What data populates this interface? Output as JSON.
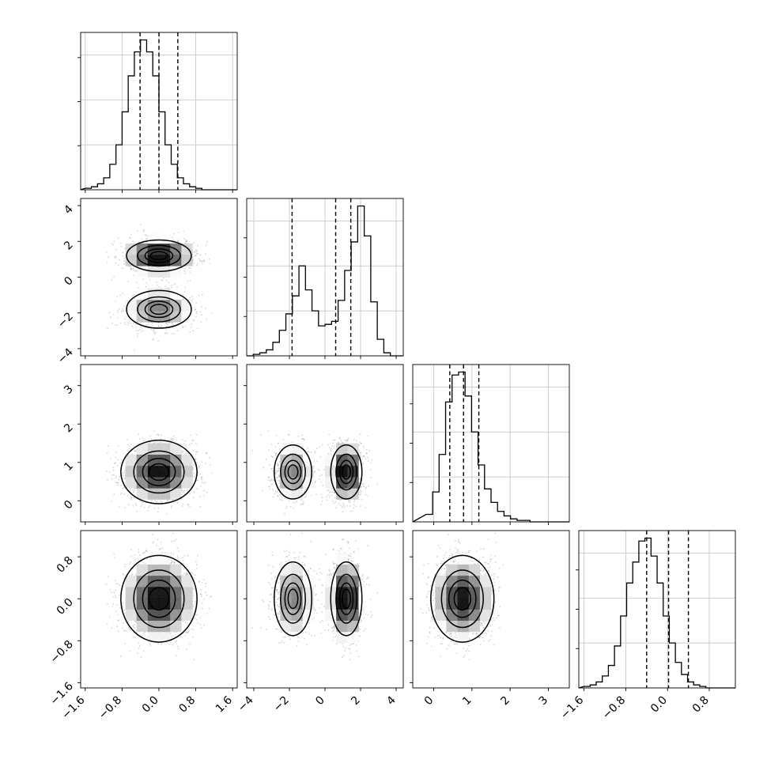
{
  "chart_data": {
    "type": "corner",
    "title": "",
    "grid": true,
    "params": [
      {
        "range": [
          -1.7,
          1.7
        ],
        "ticks": [
          -1.6,
          -0.8,
          0.0,
          0.8,
          1.6
        ],
        "tick_labels": [
          "−1.6",
          "−0.8",
          "0.0",
          "0.8",
          "1.6"
        ],
        "quantiles": [
          -0.41,
          0.0,
          0.41
        ],
        "hist_edges_start": -1.6,
        "hist_bin_width": 0.1333,
        "hist_counts": [
          1,
          2,
          4,
          8,
          17,
          30,
          52,
          76,
          92,
          100,
          92,
          76,
          52,
          30,
          17,
          8,
          4,
          2,
          1,
          0,
          0,
          0,
          0,
          0
        ],
        "mixture": [
          {
            "w": 1.0,
            "mu": 0.0,
            "sd": 0.4
          }
        ]
      },
      {
        "range": [
          -4.4,
          4.4
        ],
        "ticks": [
          -4,
          -2,
          0,
          2,
          4
        ],
        "tick_labels": [
          "−4",
          "−2",
          "0",
          "2",
          "4"
        ],
        "quantiles": [
          -1.85,
          0.6,
          1.45
        ],
        "hist_edges_start": -4.4,
        "hist_bin_width": 0.367,
        "hist_counts": [
          0,
          1,
          2,
          4,
          9,
          17,
          28,
          40,
          60,
          44,
          30,
          20,
          21,
          23,
          37,
          57,
          76,
          100,
          80,
          36,
          11,
          2,
          0,
          0
        ],
        "mixture": [
          {
            "w": 0.4,
            "mu": -1.8,
            "sd": 0.6
          },
          {
            "w": 0.6,
            "mu": 1.2,
            "sd": 0.5
          }
        ]
      },
      {
        "range": [
          -0.55,
          3.55
        ],
        "ticks": [
          0,
          1,
          2,
          3
        ],
        "tick_labels": [
          "0",
          "1",
          "2",
          "3"
        ],
        "quantiles": [
          0.42,
          0.78,
          1.18
        ],
        "hist_edges_start": -0.2,
        "hist_bin_width": 0.17,
        "hist_counts": [
          5,
          20,
          45,
          80,
          98,
          100,
          84,
          60,
          38,
          22,
          13,
          7,
          4,
          2,
          1,
          1,
          0,
          0,
          0,
          0,
          0,
          0,
          0,
          0
        ],
        "mixture": [
          {
            "w": 1.0,
            "mu": 0.75,
            "sd": 0.4
          }
        ]
      },
      {
        "range": [
          -1.7,
          1.3
        ],
        "ticks": [
          -1.6,
          -0.8,
          0.0,
          0.8
        ],
        "tick_labels": [
          "−1.6",
          "−0.8",
          "0.0",
          "0.8"
        ],
        "quantiles": [
          -0.4,
          0.02,
          0.4
        ],
        "hist_edges_start": -1.6,
        "hist_bin_width": 0.1167,
        "hist_counts": [
          1,
          2,
          4,
          8,
          15,
          28,
          48,
          70,
          84,
          98,
          100,
          88,
          70,
          48,
          30,
          17,
          9,
          4,
          2,
          1,
          0,
          0,
          0,
          0
        ],
        "mixture": [
          {
            "w": 1.0,
            "mu": 0.0,
            "sd": 0.4
          }
        ]
      }
    ],
    "scatter_counts": 1500,
    "seed": 7,
    "contour_levels": [
      0.118,
      0.393,
      0.675,
      0.865
    ]
  }
}
